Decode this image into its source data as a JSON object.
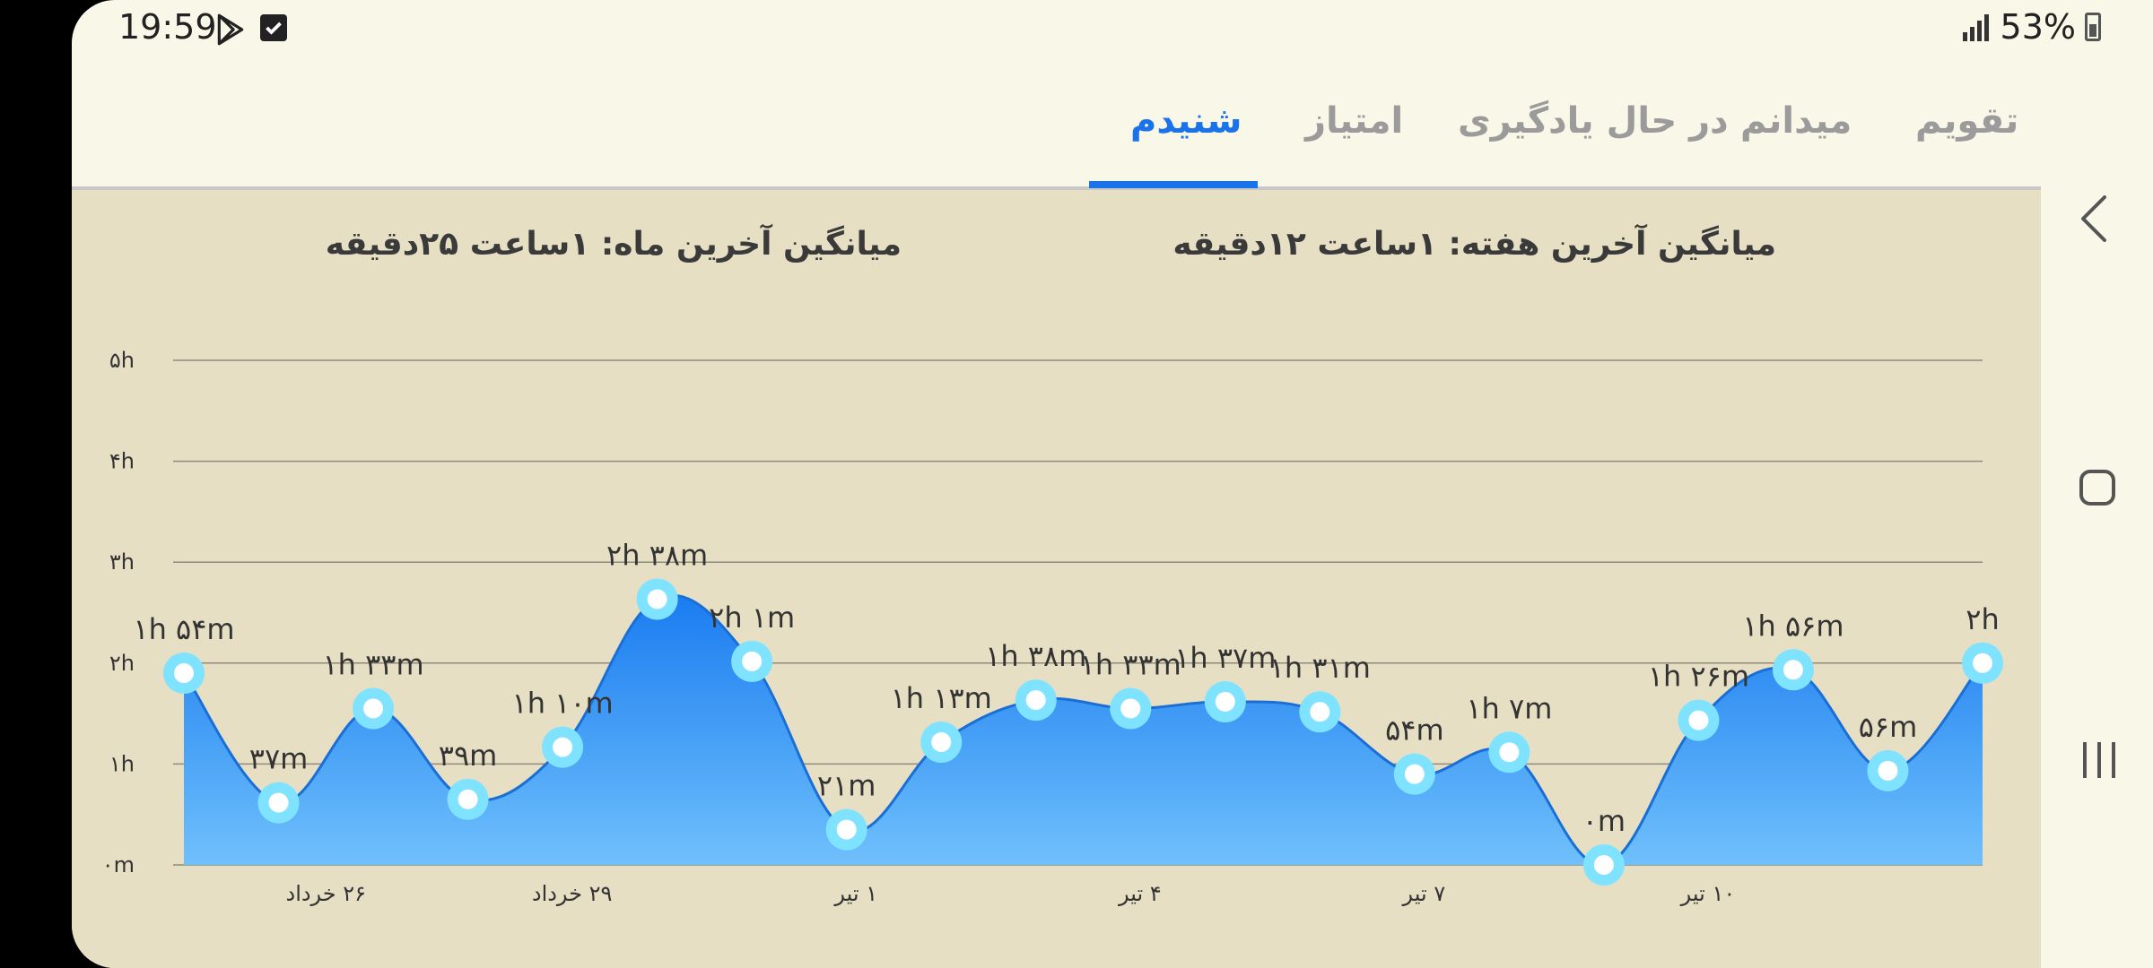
{
  "status": {
    "time": "19:59",
    "battery": "53%",
    "icons": [
      "play-store-icon",
      "checkbox-icon",
      "signal-icon",
      "battery-icon"
    ]
  },
  "tabs": [
    {
      "label": "تقویم",
      "active": false
    },
    {
      "label": "میدانم",
      "active": false
    },
    {
      "label": "در حال یادگیری",
      "active": false
    },
    {
      "label": "امتیاز",
      "active": false
    },
    {
      "label": "شنیدم",
      "active": true
    }
  ],
  "averages": {
    "week": "میانگین آخرین هفته: ۱ساعت  ۱۲دقیقه",
    "month": "میانگین آخرین ماه: ۱ساعت  ۲۵دقیقه"
  },
  "colors": {
    "accent": "#1a73e8",
    "line": "#1a6fd6",
    "area_top": "#1a7cf0",
    "area_bottom": "#6fc0fb",
    "point_ring": "#7fe3ff"
  },
  "chart_data": {
    "type": "area",
    "y_ticks": [
      "۰m",
      "۱h",
      "۲h",
      "۳h",
      "۴h",
      "۵h"
    ],
    "ylim_minutes": [
      0,
      300
    ],
    "x_tick_labels": [
      "۲۶ خرداد",
      "۲۹ خرداد",
      "۱ تیر",
      "۴ تیر",
      "۷ تیر",
      "۱۰ تیر"
    ],
    "x_tick_indices": [
      1.5,
      4.1,
      7.1,
      10.1,
      13.1,
      16.1
    ],
    "series": [
      {
        "values_minutes": [
          114,
          37,
          93,
          39,
          70,
          158,
          121,
          21,
          73,
          98,
          93,
          97,
          91,
          54,
          67,
          0,
          86,
          116,
          56,
          120
        ],
        "labels": [
          "۱h ۵۴m",
          "۳۷m",
          "۱h ۳۳m",
          "۳۹m",
          "۱h ۱۰m",
          "۲h ۳۸m",
          "۲h ۱m",
          "۲۱m",
          "۱h ۱۳m",
          "۱h ۳۸m",
          "۱h ۳۳m",
          "۱h ۳۷m",
          "۱h ۳۱m",
          "۵۴m",
          "۱h ۷m",
          "۰m",
          "۱h ۲۶m",
          "۱h ۵۶m",
          "۵۶m",
          "۲h"
        ]
      }
    ]
  }
}
